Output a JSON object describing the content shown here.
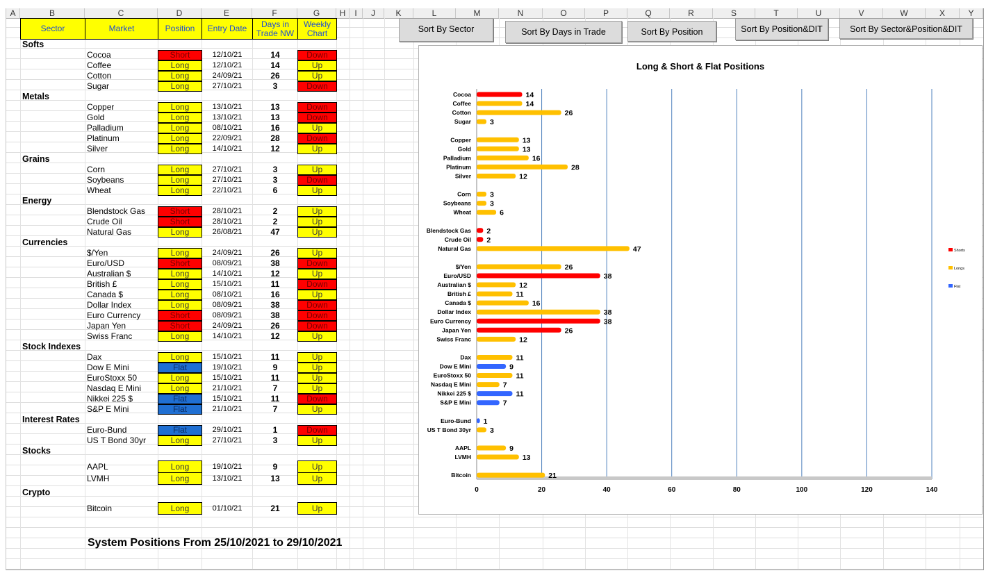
{
  "columns": [
    "A",
    "B",
    "C",
    "D",
    "E",
    "F",
    "G",
    "H",
    "I",
    "J",
    "K",
    "L",
    "M",
    "N",
    "O",
    "P",
    "Q",
    "R",
    "S",
    "T",
    "U",
    "V",
    "W",
    "X",
    "Y"
  ],
  "headers": {
    "sector": "Sector",
    "market": "Market",
    "position": "Position",
    "entry_date": "Entry Date",
    "days_l1": "Days in",
    "days_l2": "Trade NW",
    "chart_l1": "Weekly",
    "chart_l2": "Chart"
  },
  "buttons": {
    "sector": "Sort By Sector",
    "days": "Sort By Days in Trade",
    "position": "Sort By Position",
    "pos_dit": "Sort By Position&DIT",
    "sector_pos_dit": "Sort By Sector&Position&DIT"
  },
  "groups": [
    {
      "sector": "Softs",
      "rows": [
        {
          "market": "Cocoa",
          "position": "Short",
          "date": "12/10/21",
          "days": "14",
          "chart": "Down"
        },
        {
          "market": "Coffee",
          "position": "Long",
          "date": "12/10/21",
          "days": "14",
          "chart": "Up"
        },
        {
          "market": "Cotton",
          "position": "Long",
          "date": "24/09/21",
          "days": "26",
          "chart": "Up"
        },
        {
          "market": "Sugar",
          "position": "Long",
          "date": "27/10/21",
          "days": "3",
          "chart": "Down"
        }
      ]
    },
    {
      "sector": "Metals",
      "rows": [
        {
          "market": "Copper",
          "position": "Long",
          "date": "13/10/21",
          "days": "13",
          "chart": "Down"
        },
        {
          "market": "Gold",
          "position": "Long",
          "date": "13/10/21",
          "days": "13",
          "chart": "Down"
        },
        {
          "market": "Palladium",
          "position": "Long",
          "date": "08/10/21",
          "days": "16",
          "chart": "Up"
        },
        {
          "market": "Platinum",
          "position": "Long",
          "date": "22/09/21",
          "days": "28",
          "chart": "Down"
        },
        {
          "market": "Silver",
          "position": "Long",
          "date": "14/10/21",
          "days": "12",
          "chart": "Up"
        }
      ]
    },
    {
      "sector": "Grains",
      "rows": [
        {
          "market": "Corn",
          "position": "Long",
          "date": "27/10/21",
          "days": "3",
          "chart": "Up"
        },
        {
          "market": "Soybeans",
          "position": "Long",
          "date": "27/10/21",
          "days": "3",
          "chart": "Down"
        },
        {
          "market": "Wheat",
          "position": "Long",
          "date": "22/10/21",
          "days": "6",
          "chart": "Up"
        }
      ]
    },
    {
      "sector": "Energy",
      "rows": [
        {
          "market": "Blendstock Gas",
          "position": "Short",
          "date": "28/10/21",
          "days": "2",
          "chart": "Up"
        },
        {
          "market": "Crude Oil",
          "position": "Short",
          "date": "28/10/21",
          "days": "2",
          "chart": "Up"
        },
        {
          "market": "Natural Gas",
          "position": "Long",
          "date": "26/08/21",
          "days": "47",
          "chart": "Up"
        }
      ]
    },
    {
      "sector": "Currencies",
      "rows": [
        {
          "market": "$/Yen",
          "position": "Long",
          "date": "24/09/21",
          "days": "26",
          "chart": "Up"
        },
        {
          "market": "Euro/USD",
          "position": "Short",
          "date": "08/09/21",
          "days": "38",
          "chart": "Down"
        },
        {
          "market": "Australian $",
          "position": "Long",
          "date": "14/10/21",
          "days": "12",
          "chart": "Up"
        },
        {
          "market": "British £",
          "position": "Long",
          "date": "15/10/21",
          "days": "11",
          "chart": "Down"
        },
        {
          "market": "Canada $",
          "position": "Long",
          "date": "08/10/21",
          "days": "16",
          "chart": "Up"
        },
        {
          "market": "Dollar Index",
          "position": "Long",
          "date": "08/09/21",
          "days": "38",
          "chart": "Down"
        },
        {
          "market": "Euro Currency",
          "position": "Short",
          "date": "08/09/21",
          "days": "38",
          "chart": "Down"
        },
        {
          "market": "Japan Yen",
          "position": "Short",
          "date": "24/09/21",
          "days": "26",
          "chart": "Down"
        },
        {
          "market": "Swiss Franc",
          "position": "Long",
          "date": "14/10/21",
          "days": "12",
          "chart": "Up"
        }
      ]
    },
    {
      "sector": "Stock Indexes",
      "rows": [
        {
          "market": "Dax",
          "position": "Long",
          "date": "15/10/21",
          "days": "11",
          "chart": "Up"
        },
        {
          "market": "Dow E Mini",
          "position": "Flat",
          "date": "19/10/21",
          "days": "9",
          "chart": "Up"
        },
        {
          "market": "EuroStoxx 50",
          "position": "Long",
          "date": "15/10/21",
          "days": "11",
          "chart": "Up"
        },
        {
          "market": "Nasdaq E Mini",
          "position": "Long",
          "date": "21/10/21",
          "days": "7",
          "chart": "Up"
        },
        {
          "market": "Nikkei 225 $",
          "position": "Flat",
          "date": "15/10/21",
          "days": "11",
          "chart": "Down"
        },
        {
          "market": "S&P E Mini",
          "position": "Flat",
          "date": "21/10/21",
          "days": "7",
          "chart": "Up"
        }
      ]
    },
    {
      "sector": "Interest Rates",
      "rows": [
        {
          "market": "Euro-Bund",
          "position": "Flat",
          "date": "29/10/21",
          "days": "1",
          "chart": "Down"
        },
        {
          "market": "US T Bond 30yr",
          "position": "Long",
          "date": "27/10/21",
          "days": "3",
          "chart": "Up"
        }
      ]
    },
    {
      "sector": "Stocks",
      "rows": [
        {
          "market": "AAPL",
          "position": "Long",
          "date": "19/10/21",
          "days": "9",
          "chart": "Up"
        },
        {
          "market": "LVMH",
          "position": "Long",
          "date": "13/10/21",
          "days": "13",
          "chart": "Up"
        }
      ]
    },
    {
      "sector": "Crypto",
      "rows": [
        {
          "market": "Bitcoin",
          "position": "Long",
          "date": "01/10/21",
          "days": "21",
          "chart": "Up"
        }
      ]
    }
  ],
  "footer": "System Positions From  25/10/2021  to 29/10/2021",
  "colors": {
    "long": "#ffc000",
    "short": "#ff0000",
    "flat": "#3366ff",
    "header_fill": "#ffff00",
    "header_text": "#1f4fd0",
    "gridline": "#4f81bd"
  },
  "chart_data": {
    "type": "bar",
    "orientation": "horizontal",
    "title": "Long & Short & Flat Positions",
    "xlim": [
      0,
      140
    ],
    "xticks": [
      0,
      20,
      40,
      60,
      80,
      100,
      120,
      140
    ],
    "legend": [
      "Shorts",
      "Longs",
      "Flat"
    ],
    "legend_position": "right",
    "grid": "vertical",
    "categories": [
      "Cocoa",
      "Coffee",
      "Cotton",
      "Sugar",
      "",
      "Copper",
      "Gold",
      "Palladium",
      "Platinum",
      "Silver",
      "",
      "Corn",
      "Soybeans",
      "Wheat",
      "",
      "Blendstock Gas",
      "Crude Oil",
      "Natural Gas",
      "",
      "$/Yen",
      "Euro/USD",
      "Australian $",
      "British £",
      "Canada $",
      "Dollar Index",
      "Euro Currency",
      "Japan Yen",
      "Swiss Franc",
      "",
      "Dax",
      "Dow E Mini",
      "EuroStoxx 50",
      "Nasdaq E Mini",
      "Nikkei 225 $",
      "S&P E Mini",
      "",
      "Euro-Bund",
      "US T Bond 30yr",
      "",
      "AAPL",
      "LVMH",
      "",
      "Bitcoin"
    ],
    "series": [
      {
        "name": "Shorts",
        "values": [
          14,
          null,
          null,
          null,
          null,
          null,
          null,
          null,
          null,
          null,
          null,
          null,
          null,
          null,
          null,
          2,
          2,
          null,
          null,
          null,
          38,
          null,
          null,
          null,
          null,
          38,
          26,
          null,
          null,
          null,
          null,
          null,
          null,
          null,
          null,
          null,
          null,
          null,
          null,
          null,
          null,
          null,
          null
        ]
      },
      {
        "name": "Longs",
        "values": [
          null,
          14,
          26,
          3,
          null,
          13,
          13,
          16,
          28,
          12,
          null,
          3,
          3,
          6,
          null,
          null,
          null,
          47,
          null,
          26,
          null,
          12,
          11,
          16,
          38,
          null,
          null,
          12,
          null,
          11,
          null,
          11,
          7,
          null,
          null,
          null,
          null,
          3,
          null,
          9,
          13,
          null,
          21
        ]
      },
      {
        "name": "Flat",
        "values": [
          null,
          null,
          null,
          null,
          null,
          null,
          null,
          null,
          null,
          null,
          null,
          null,
          null,
          null,
          null,
          null,
          null,
          null,
          null,
          null,
          null,
          null,
          null,
          null,
          null,
          null,
          null,
          null,
          null,
          null,
          9,
          null,
          null,
          11,
          7,
          null,
          1,
          null,
          null,
          null,
          null,
          null,
          null
        ]
      }
    ]
  }
}
